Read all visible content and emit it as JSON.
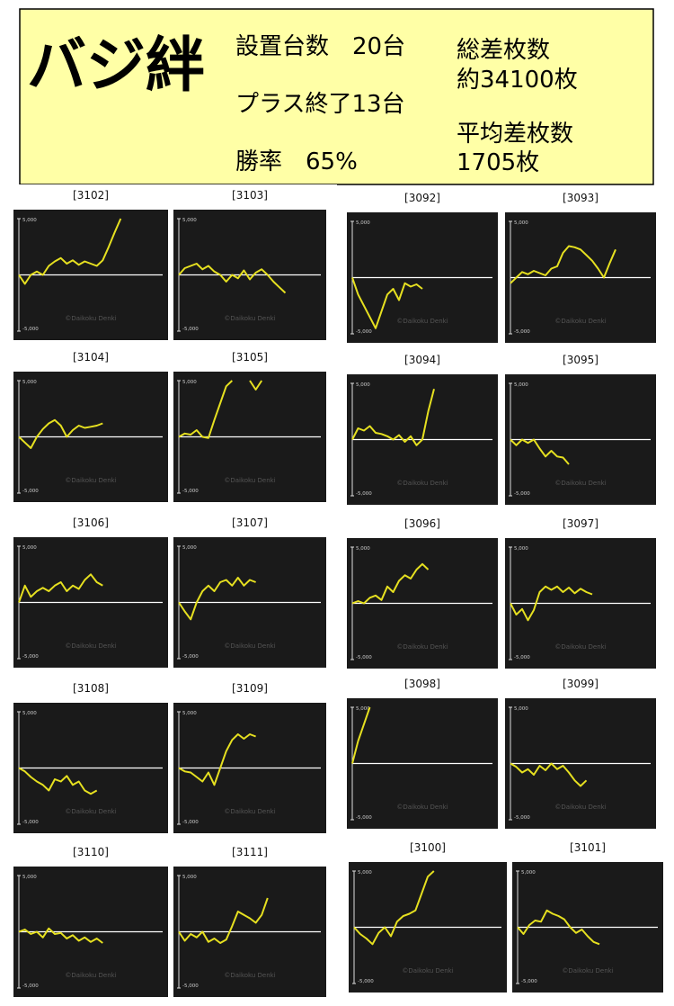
{
  "header": {
    "title": "バジ絆",
    "installed": "設置台数　20台",
    "plus": "プラス終了13台",
    "win_rate": "勝率　65%",
    "total_label": "総差枚数",
    "total": "約34100枚",
    "avg_label": "平均差枚数",
    "avg": "1705枚"
  },
  "chart_data": [
    {
      "type": "line",
      "title": "[3102]",
      "watermark": "©Daikoku Denki",
      "color": "#e6e020",
      "ylim": [
        -5000,
        5000
      ],
      "yticks": [
        {
          "value": 5000,
          "label": "5,000"
        },
        {
          "value": -5000,
          "label": "-5,000"
        }
      ],
      "values": [
        0,
        -800,
        0,
        300,
        0,
        800,
        1200,
        1500,
        1000,
        1300,
        900,
        1200,
        1000,
        800,
        1300,
        2500,
        3800,
        5000
      ]
    },
    {
      "type": "line",
      "title": "[3103]",
      "watermark": "©Daikoku Denki",
      "color": "#e6e020",
      "ylim": [
        -5000,
        5000
      ],
      "yticks": [
        {
          "value": 5000,
          "label": "5,000"
        },
        {
          "value": -5000,
          "label": "-5,000"
        }
      ],
      "values": [
        0,
        600,
        800,
        1000,
        500,
        800,
        300,
        0,
        -600,
        0,
        -300,
        400,
        -400,
        200,
        500,
        0,
        -600,
        -1100,
        -1600
      ]
    },
    {
      "type": "line",
      "title": "[3092]",
      "watermark": "©Daikoku Denki",
      "color": "#e6e020",
      "ylim": [
        -5000,
        5000
      ],
      "yticks": [
        {
          "value": 5000,
          "label": "5,000"
        },
        {
          "value": -5000,
          "label": "-5,000"
        }
      ],
      "values": [
        0,
        -1500,
        -2500,
        -3500,
        -4500,
        -3000,
        -1500,
        -1000,
        -2000,
        -500,
        -800,
        -600,
        -1000
      ]
    },
    {
      "type": "line",
      "title": "[3093]",
      "watermark": "©Daikoku Denki",
      "color": "#e6e020",
      "ylim": [
        -5000,
        5000
      ],
      "yticks": [
        {
          "value": 5000,
          "label": "5,000"
        },
        {
          "value": -5000,
          "label": "-5,000"
        }
      ],
      "values": [
        -500,
        0,
        500,
        300,
        600,
        400,
        200,
        800,
        1000,
        2200,
        2800,
        2700,
        2500,
        2000,
        1500,
        800,
        0,
        1300,
        2500
      ]
    },
    {
      "type": "line",
      "title": "[3104]",
      "watermark": "©Daikoku Denki",
      "color": "#e6e020",
      "ylim": [
        -5000,
        5000
      ],
      "yticks": [
        {
          "value": 5000,
          "label": "5,000"
        },
        {
          "value": -5000,
          "label": "-5,000"
        }
      ],
      "values": [
        0,
        -500,
        -1000,
        0,
        700,
        1200,
        1500,
        1000,
        0,
        600,
        1000,
        800,
        900,
        1000,
        1200
      ]
    },
    {
      "type": "line",
      "title": "[3105]",
      "watermark": "©Daikoku Denki",
      "color": "#e6e020",
      "ylim": [
        -5000,
        5000
      ],
      "yticks": [
        {
          "value": 5000,
          "label": "5,000"
        },
        {
          "value": -5000,
          "label": "-5,000"
        }
      ],
      "values": [
        0,
        300,
        200,
        600,
        0,
        -100,
        1500,
        3000,
        4500,
        5000,
        null,
        null,
        5000,
        4200,
        5000
      ]
    },
    {
      "type": "line",
      "title": "[3094]",
      "watermark": "©Daikoku Denki",
      "color": "#e6e020",
      "ylim": [
        -5000,
        5000
      ],
      "yticks": [
        {
          "value": 5000,
          "label": "5,000"
        },
        {
          "value": -5000,
          "label": "-5,000"
        }
      ],
      "values": [
        0,
        1000,
        800,
        1200,
        600,
        500,
        300,
        0,
        400,
        -200,
        300,
        -500,
        0,
        2500,
        4500
      ]
    },
    {
      "type": "line",
      "title": "[3095]",
      "watermark": "©Daikoku Denki",
      "color": "#e6e020",
      "ylim": [
        -5000,
        5000
      ],
      "yticks": [
        {
          "value": 5000,
          "label": "5,000"
        },
        {
          "value": -5000,
          "label": "-5,000"
        }
      ],
      "values": [
        0,
        -500,
        0,
        -300,
        0,
        -800,
        -1500,
        -1000,
        -1500,
        -1600,
        -2200
      ]
    },
    {
      "type": "line",
      "title": "[3106]",
      "watermark": "©Daikoku Denki",
      "color": "#e6e020",
      "ylim": [
        -5000,
        5000
      ],
      "yticks": [
        {
          "value": 5000,
          "label": "5,000"
        },
        {
          "value": -5000,
          "label": "-5,000"
        }
      ],
      "values": [
        0,
        1500,
        500,
        1000,
        1300,
        1000,
        1500,
        1800,
        1000,
        1500,
        1200,
        2000,
        2500,
        1800,
        1500
      ]
    },
    {
      "type": "line",
      "title": "[3107]",
      "watermark": "©Daikoku Denki",
      "color": "#e6e020",
      "ylim": [
        -5000,
        5000
      ],
      "yticks": [
        {
          "value": 5000,
          "label": "5,000"
        },
        {
          "value": -5000,
          "label": "-5,000"
        }
      ],
      "values": [
        0,
        -800,
        -1500,
        0,
        1000,
        1500,
        1000,
        1800,
        2000,
        1500,
        2200,
        1500,
        2000,
        1800
      ]
    },
    {
      "type": "line",
      "title": "[3096]",
      "watermark": "©Daikoku Denki",
      "color": "#e6e020",
      "ylim": [
        -5000,
        5000
      ],
      "yticks": [
        {
          "value": 5000,
          "label": "5,000"
        },
        {
          "value": -5000,
          "label": "-5,000"
        }
      ],
      "values": [
        0,
        200,
        0,
        500,
        700,
        300,
        1500,
        1000,
        2000,
        2500,
        2200,
        3000,
        3500,
        3000
      ]
    },
    {
      "type": "line",
      "title": "[3097]",
      "watermark": "©Daikoku Denki",
      "color": "#e6e020",
      "ylim": [
        -5000,
        5000
      ],
      "yticks": [
        {
          "value": 5000,
          "label": "5,000"
        },
        {
          "value": -5000,
          "label": "-5,000"
        }
      ],
      "values": [
        0,
        -1000,
        -500,
        -1500,
        -600,
        1000,
        1500,
        1200,
        1500,
        1000,
        1400,
        900,
        1300,
        1000,
        800
      ]
    },
    {
      "type": "line",
      "title": "[3108]",
      "watermark": "©Daikoku Denki",
      "color": "#e6e020",
      "ylim": [
        -5000,
        5000
      ],
      "yticks": [
        {
          "value": 5000,
          "label": "5,000"
        },
        {
          "value": -5000,
          "label": "-5,000"
        }
      ],
      "values": [
        0,
        -300,
        -800,
        -1200,
        -1500,
        -2000,
        -1000,
        -1200,
        -700,
        -1500,
        -1200,
        -2000,
        -2300,
        -2000
      ]
    },
    {
      "type": "line",
      "title": "[3109]",
      "watermark": "©Daikoku Denki",
      "color": "#e6e020",
      "ylim": [
        -5000,
        5000
      ],
      "yticks": [
        {
          "value": 5000,
          "label": "5,000"
        },
        {
          "value": -5000,
          "label": "-5,000"
        }
      ],
      "values": [
        0,
        -300,
        -400,
        -800,
        -1200,
        -400,
        -1500,
        0,
        1500,
        2500,
        3000,
        2600,
        3000,
        2800
      ]
    },
    {
      "type": "line",
      "title": "[3098]",
      "watermark": "©Daikoku Denki",
      "color": "#e6e020",
      "ylim": [
        -5000,
        5000
      ],
      "yticks": [
        {
          "value": 5000,
          "label": "5,000"
        },
        {
          "value": -5000,
          "label": "-5,000"
        }
      ],
      "values": [
        0,
        2000,
        3500,
        5000
      ]
    },
    {
      "type": "line",
      "title": "[3099]",
      "watermark": "©Daikoku Denki",
      "color": "#e6e020",
      "ylim": [
        -5000,
        5000
      ],
      "yticks": [
        {
          "value": 5000,
          "label": "5,000"
        },
        {
          "value": -5000,
          "label": "-5,000"
        }
      ],
      "values": [
        0,
        -300,
        -800,
        -500,
        -1000,
        -200,
        -600,
        0,
        -500,
        -200,
        -800,
        -1500,
        -2000,
        -1500
      ]
    },
    {
      "type": "line",
      "title": "[3110]",
      "watermark": "©Daikoku Denki",
      "color": "#e6e020",
      "ylim": [
        -5000,
        5000
      ],
      "yticks": [
        {
          "value": 5000,
          "label": "5,000"
        },
        {
          "value": -5000,
          "label": "-5,000"
        }
      ],
      "values": [
        0,
        200,
        -200,
        0,
        -500,
        300,
        -200,
        -100,
        -600,
        -300,
        -800,
        -500,
        -900,
        -600,
        -1000
      ]
    },
    {
      "type": "line",
      "title": "[3111]",
      "watermark": "©Daikoku Denki",
      "color": "#e6e020",
      "ylim": [
        -5000,
        5000
      ],
      "yticks": [
        {
          "value": 5000,
          "label": "5,000"
        },
        {
          "value": -5000,
          "label": "-5,000"
        }
      ],
      "values": [
        0,
        -800,
        -200,
        -500,
        0,
        -900,
        -600,
        -1000,
        -700,
        500,
        1800,
        1500,
        1200,
        800,
        1500,
        3000
      ]
    },
    {
      "type": "line",
      "title": "[3100]",
      "watermark": "©Daikoku Denki",
      "color": "#e6e020",
      "ylim": [
        -5000,
        5000
      ],
      "yticks": [
        {
          "value": 5000,
          "label": "5,000"
        },
        {
          "value": -5000,
          "label": "-5,000"
        }
      ],
      "values": [
        0,
        -600,
        -1000,
        -1500,
        -500,
        0,
        -800,
        500,
        1000,
        1200,
        1500,
        3000,
        4500,
        5000
      ]
    },
    {
      "type": "line",
      "title": "[3101]",
      "watermark": "©Daikoku Denki",
      "color": "#e6e020",
      "ylim": [
        -5000,
        5000
      ],
      "yticks": [
        {
          "value": 5000,
          "label": "5,000"
        },
        {
          "value": -5000,
          "label": "-5,000"
        }
      ],
      "values": [
        0,
        -600,
        200,
        600,
        500,
        1500,
        1200,
        1000,
        700,
        0,
        -500,
        -200,
        -800,
        -1300,
        -1500
      ]
    }
  ]
}
